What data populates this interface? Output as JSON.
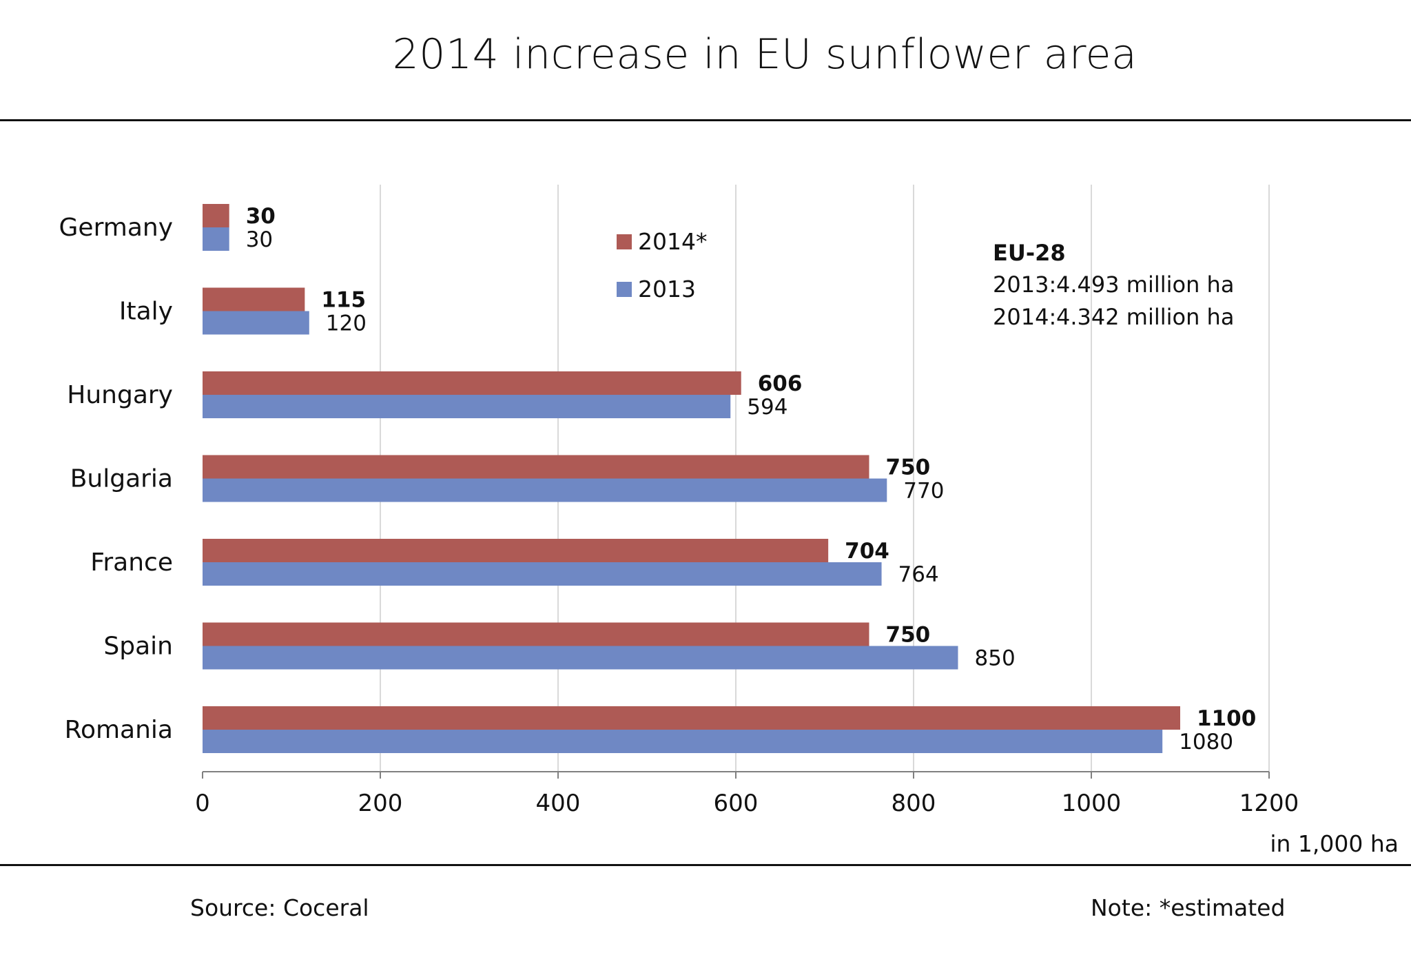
{
  "chart_data": {
    "type": "bar",
    "orientation": "horizontal",
    "title": "2014 increase in EU sunflower area",
    "categories": [
      "Germany",
      "Italy",
      "Hungary",
      "Bulgaria",
      "France",
      "Spain",
      "Romania"
    ],
    "series": [
      {
        "name": "2014*",
        "color": "#ae5a55",
        "values": [
          30,
          115,
          606,
          750,
          704,
          750,
          1100
        ]
      },
      {
        "name": "2013",
        "color": "#6f88c4",
        "values": [
          30,
          120,
          594,
          770,
          764,
          850,
          1080
        ]
      }
    ],
    "xlim": [
      0,
      1200
    ],
    "x_ticks": [
      0,
      200,
      400,
      600,
      800,
      1000,
      1200
    ],
    "xlabel": "in 1,000 ha",
    "grid": true,
    "legend_position": "top-center"
  },
  "info_box": {
    "heading": "EU-28",
    "line_2013_label": "2013:",
    "line_2013_value": "4.493 million ha",
    "line_2014_label": "2014:",
    "line_2014_value": "4.342 million ha"
  },
  "footer": {
    "source": "Source: Coceral",
    "note": "Note: *estimated"
  }
}
